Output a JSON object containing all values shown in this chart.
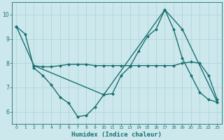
{
  "xlabel": "Humidex (Indice chaleur)",
  "bg_color": "#cce8ed",
  "grid_color": "#b0d4db",
  "line_color": "#1a7070",
  "xlim": [
    -0.5,
    23.5
  ],
  "ylim": [
    5.5,
    10.5
  ],
  "xticks": [
    0,
    1,
    2,
    3,
    4,
    5,
    6,
    7,
    8,
    9,
    10,
    11,
    12,
    13,
    14,
    15,
    16,
    17,
    18,
    19,
    20,
    21,
    22,
    23
  ],
  "yticks": [
    6,
    7,
    8,
    9,
    10
  ],
  "line1_x": [
    0,
    1,
    2,
    3,
    4,
    5,
    6,
    7,
    8,
    9,
    10,
    11,
    12,
    13,
    14,
    15,
    16,
    17,
    18,
    19,
    20,
    21,
    22,
    23
  ],
  "line1_y": [
    9.5,
    9.2,
    7.8,
    7.5,
    7.1,
    6.6,
    6.35,
    5.8,
    5.85,
    6.2,
    6.7,
    6.75,
    7.5,
    7.85,
    8.5,
    9.1,
    9.4,
    10.2,
    9.4,
    8.2,
    7.5,
    6.8,
    6.5,
    6.4
  ],
  "line2_x": [
    2,
    3,
    4,
    5,
    6,
    7,
    8,
    9,
    10,
    11,
    12,
    13,
    14,
    15,
    16,
    17,
    18,
    19,
    20,
    21,
    22,
    23
  ],
  "line2_y": [
    7.9,
    7.85,
    7.85,
    7.9,
    7.95,
    7.95,
    7.95,
    7.9,
    7.9,
    7.9,
    7.9,
    7.9,
    7.9,
    7.9,
    7.9,
    7.9,
    7.9,
    8.0,
    8.05,
    8.0,
    7.5,
    6.5
  ],
  "line3_x": [
    0,
    2,
    10,
    17,
    19,
    23
  ],
  "line3_y": [
    9.5,
    7.9,
    6.7,
    10.2,
    9.4,
    6.4
  ],
  "marker": "D",
  "marker_size": 2.5,
  "line_width": 1.0
}
